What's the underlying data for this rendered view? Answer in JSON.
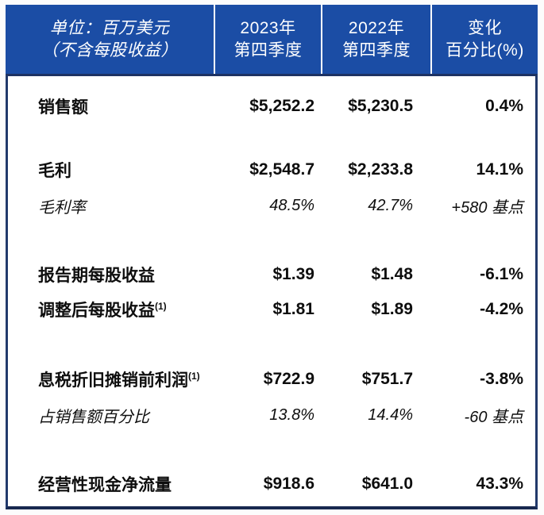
{
  "colors": {
    "header_bg": "#1b4da5",
    "header_text": "#ffffff",
    "body_border": "#21396b",
    "body_text": "#0e0e0e",
    "body_bg": "#ffffff"
  },
  "header": {
    "unit_label_line1": "单位：百万美元",
    "unit_label_line2": "（不含每股收益）",
    "columns": [
      {
        "line1": "2023年",
        "line2": "第四季度"
      },
      {
        "line1": "2022年",
        "line2": "第四季度"
      },
      {
        "line1": "变化",
        "line2": "百分比(%)"
      }
    ]
  },
  "rows": [
    {
      "label": "销售额",
      "footnote": "",
      "q4_2023": "$5,252.2",
      "q4_2022": "$5,230.5",
      "change": "0.4%",
      "emphasis": "bold"
    },
    {
      "label": "毛利",
      "footnote": "",
      "q4_2023": "$2,548.7",
      "q4_2022": "$2,233.8",
      "change": "14.1%",
      "emphasis": "bold"
    },
    {
      "label": "毛利率",
      "footnote": "",
      "q4_2023": "48.5%",
      "q4_2022": "42.7%",
      "change": "+580 基点",
      "emphasis": "italic"
    },
    {
      "label": "报告期每股收益",
      "footnote": "",
      "q4_2023": "$1.39",
      "q4_2022": "$1.48",
      "change": "-6.1%",
      "emphasis": "bold"
    },
    {
      "label": "调整后每股收益",
      "footnote": "(1)",
      "q4_2023": "$1.81",
      "q4_2022": "$1.89",
      "change": "-4.2%",
      "emphasis": "bold"
    },
    {
      "label": "息税折旧摊销前利润",
      "footnote": "(1)",
      "q4_2023": "$722.9",
      "q4_2022": "$751.7",
      "change": "-3.8%",
      "emphasis": "bold"
    },
    {
      "label": "占销售额百分比",
      "footnote": "",
      "q4_2023": "13.8%",
      "q4_2022": "14.4%",
      "change": "-60 基点",
      "emphasis": "italic"
    },
    {
      "label": "经营性现金净流量",
      "footnote": "",
      "q4_2023": "$918.6",
      "q4_2022": "$641.0",
      "change": "43.3%",
      "emphasis": "bold"
    }
  ]
}
